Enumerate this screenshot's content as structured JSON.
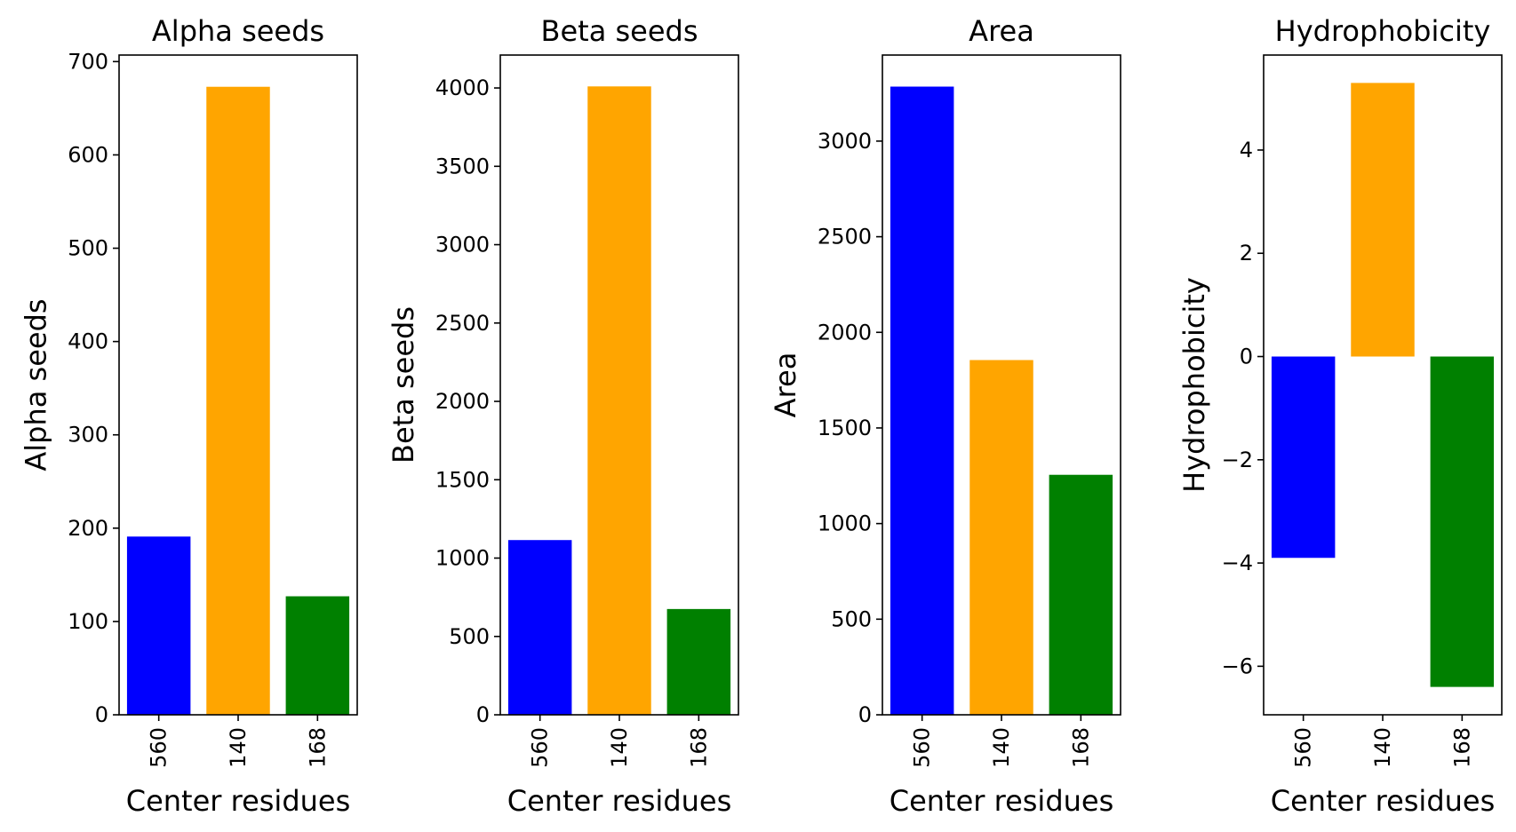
{
  "chart_data": [
    {
      "type": "bar",
      "title": "Alpha seeds",
      "xlabel": "Center residues",
      "ylabel": "Alpha seeds",
      "categories": [
        "560",
        "140",
        "168"
      ],
      "values": [
        191,
        673,
        127
      ],
      "colors": [
        "#0000ff",
        "#ffa500",
        "#008000"
      ],
      "ylim": [
        0,
        707
      ],
      "yticks": [
        0,
        100,
        200,
        300,
        400,
        500,
        600,
        700
      ]
    },
    {
      "type": "bar",
      "title": "Beta seeds",
      "xlabel": "Center residues",
      "ylabel": "Beta seeds",
      "categories": [
        "560",
        "140",
        "168"
      ],
      "values": [
        1115,
        4010,
        675
      ],
      "colors": [
        "#0000ff",
        "#ffa500",
        "#008000"
      ],
      "ylim": [
        0,
        4210
      ],
      "yticks": [
        0,
        500,
        1000,
        1500,
        2000,
        2500,
        3000,
        3500,
        4000
      ]
    },
    {
      "type": "bar",
      "title": "Area",
      "xlabel": "Center residues",
      "ylabel": "Area",
      "categories": [
        "560",
        "140",
        "168"
      ],
      "values": [
        3285,
        1855,
        1255
      ],
      "colors": [
        "#0000ff",
        "#ffa500",
        "#008000"
      ],
      "ylim": [
        0,
        3450
      ],
      "yticks": [
        0,
        500,
        1000,
        1500,
        2000,
        2500,
        3000
      ]
    },
    {
      "type": "bar",
      "title": "Hydrophobicity",
      "xlabel": "Center residues",
      "ylabel": "Hydrophobicity",
      "categories": [
        "560",
        "140",
        "168"
      ],
      "values": [
        -3.9,
        5.3,
        -6.4
      ],
      "colors": [
        "#0000ff",
        "#ffa500",
        "#008000"
      ],
      "ylim": [
        -6.94,
        5.84
      ],
      "yticks": [
        -6,
        -4,
        -2,
        0,
        2,
        4
      ]
    }
  ]
}
